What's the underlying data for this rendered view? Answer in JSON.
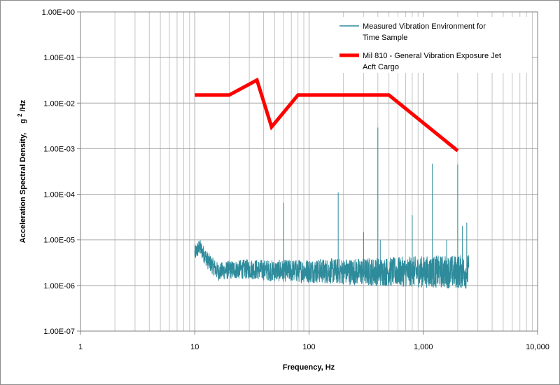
{
  "chart_data": {
    "type": "line",
    "xscale": "log",
    "yscale": "log",
    "xlim": [
      1,
      10000
    ],
    "ylim": [
      1e-07,
      1
    ],
    "grid": true,
    "legend_position": "top-right",
    "xlabel": "Frequency, Hz",
    "ylabel": {
      "text": "Acceleration Spectral Density,",
      "unit_base": "g",
      "unit_exp": "2",
      "unit_rest": "/Hz"
    },
    "x_ticks": [
      {
        "value": 1,
        "label": "1"
      },
      {
        "value": 10,
        "label": "10"
      },
      {
        "value": 100,
        "label": "100"
      },
      {
        "value": 1000,
        "label": "1,000"
      },
      {
        "value": 10000,
        "label": "10,000"
      }
    ],
    "y_ticks": [
      {
        "value": 1,
        "label": "1.00E+00"
      },
      {
        "value": 0.1,
        "label": "1.00E-01"
      },
      {
        "value": 0.01,
        "label": "1.00E-02"
      },
      {
        "value": 0.001,
        "label": "1.00E-03"
      },
      {
        "value": 0.0001,
        "label": "1.00E-04"
      },
      {
        "value": 1e-05,
        "label": "1.00E-05"
      },
      {
        "value": 1e-06,
        "label": "1.00E-06"
      },
      {
        "value": 1e-07,
        "label": "1.00E-07"
      }
    ],
    "series": [
      {
        "name": "Measured Vibration Environment for Time Sample",
        "legend_lines": [
          "Measured Vibration Environment for",
          "Time Sample"
        ],
        "color": "#2e8b9b",
        "x_range": [
          10,
          2500
        ],
        "noise_floor": [
          {
            "x": 10,
            "y": 5e-06
          },
          {
            "x": 11,
            "y": 7e-06
          },
          {
            "x": 13,
            "y": 3.5e-06
          },
          {
            "x": 16,
            "y": 2e-06
          },
          {
            "x": 20,
            "y": 2.2e-06
          },
          {
            "x": 30,
            "y": 2.3e-06
          },
          {
            "x": 50,
            "y": 2.1e-06
          },
          {
            "x": 100,
            "y": 2.1e-06
          },
          {
            "x": 300,
            "y": 2e-06
          },
          {
            "x": 1000,
            "y": 2e-06
          },
          {
            "x": 2500,
            "y": 2e-06
          }
        ],
        "peaks": [
          {
            "x": 60,
            "y": 6.5e-05
          },
          {
            "x": 180,
            "y": 0.00011
          },
          {
            "x": 300,
            "y": 1.5e-05
          },
          {
            "x": 400,
            "y": 0.0029
          },
          {
            "x": 420,
            "y": 1e-05
          },
          {
            "x": 800,
            "y": 3.5e-05
          },
          {
            "x": 1200,
            "y": 0.00047
          },
          {
            "x": 1600,
            "y": 1e-05
          },
          {
            "x": 2000,
            "y": 0.00045
          },
          {
            "x": 2200,
            "y": 2e-05
          },
          {
            "x": 2400,
            "y": 2.4e-05
          }
        ]
      },
      {
        "name": "Mil 810 - General Vibration Exposure Jet Acft Cargo",
        "legend_lines": [
          "Mil 810 - General Vibration Exposure Jet",
          "Acft Cargo"
        ],
        "color": "#ff0000",
        "points": [
          {
            "x": 10,
            "y": 0.015
          },
          {
            "x": 20,
            "y": 0.015
          },
          {
            "x": 35,
            "y": 0.032
          },
          {
            "x": 47,
            "y": 0.003
          },
          {
            "x": 80,
            "y": 0.015
          },
          {
            "x": 500,
            "y": 0.015
          },
          {
            "x": 2000,
            "y": 0.0009
          }
        ]
      }
    ]
  }
}
